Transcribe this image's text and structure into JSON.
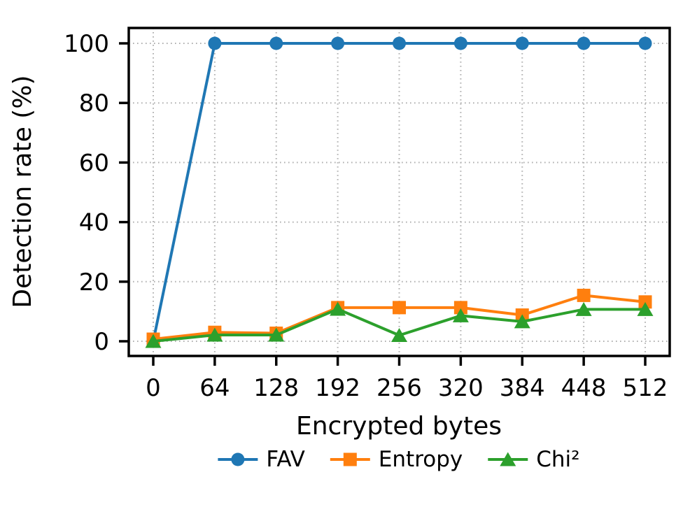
{
  "figure": {
    "background": "#ffffff",
    "axis_color": "#000000",
    "grid_color": "#b0b0b0"
  },
  "chart_data": {
    "type": "line",
    "title": "",
    "xlabel": "Encrypted bytes",
    "ylabel": "Detection rate (%)",
    "x": [
      0,
      64,
      128,
      192,
      256,
      320,
      384,
      448,
      512
    ],
    "xticks": [
      "0",
      "64",
      "128",
      "192",
      "256",
      "320",
      "384",
      "448",
      "512"
    ],
    "yticks": [
      "0",
      "20",
      "40",
      "60",
      "80",
      "100"
    ],
    "ytick_values": [
      0,
      20,
      40,
      60,
      80,
      100
    ],
    "xlim": [
      -31,
      538
    ],
    "ylim": [
      -5,
      106
    ],
    "grid": true,
    "grid_style": "dotted",
    "legend_position": "bottom-center",
    "series": [
      {
        "name": "FAV",
        "color": "#1f77b4",
        "marker": "circle",
        "values": [
          0,
          100,
          100,
          100,
          100,
          100,
          100,
          100,
          100
        ]
      },
      {
        "name": "Entropy",
        "color": "#ff7f0e",
        "marker": "square",
        "values": [
          0.7,
          3.0,
          2.7,
          11.3,
          11.3,
          11.3,
          8.8,
          15.4,
          13.2
        ]
      },
      {
        "name": "Chi²",
        "color": "#2ca02c",
        "marker": "triangle",
        "values": [
          0,
          2.1,
          2.1,
          10.8,
          2.0,
          8.6,
          6.6,
          10.7,
          10.7
        ]
      }
    ]
  }
}
